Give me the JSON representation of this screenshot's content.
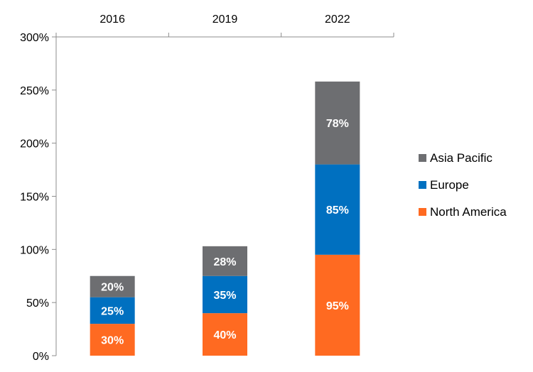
{
  "chart_data": {
    "type": "bar",
    "stacked": true,
    "categories": [
      "2016",
      "2019",
      "2022"
    ],
    "category_axis_position": "top",
    "ylim": [
      0,
      300
    ],
    "yticks": [
      0,
      50,
      100,
      150,
      200,
      250,
      300
    ],
    "ytick_labels": [
      "0%",
      "50%",
      "100%",
      "150%",
      "200%",
      "250%",
      "300%"
    ],
    "grid": false,
    "legend_position": "right",
    "series": [
      {
        "name": "North America",
        "color": "#FF6A21",
        "values": [
          30,
          40,
          95
        ],
        "labels": [
          "30%",
          "40%",
          "95%"
        ]
      },
      {
        "name": "Europe",
        "color": "#0070C0",
        "values": [
          25,
          35,
          85
        ],
        "labels": [
          "25%",
          "35%",
          "85%"
        ]
      },
      {
        "name": "Asia Pacific",
        "color": "#6D6E71",
        "values": [
          20,
          28,
          78
        ],
        "labels": [
          "20%",
          "28%",
          "78%"
        ]
      }
    ],
    "legend_order": [
      "Asia Pacific",
      "Europe",
      "North America"
    ]
  }
}
